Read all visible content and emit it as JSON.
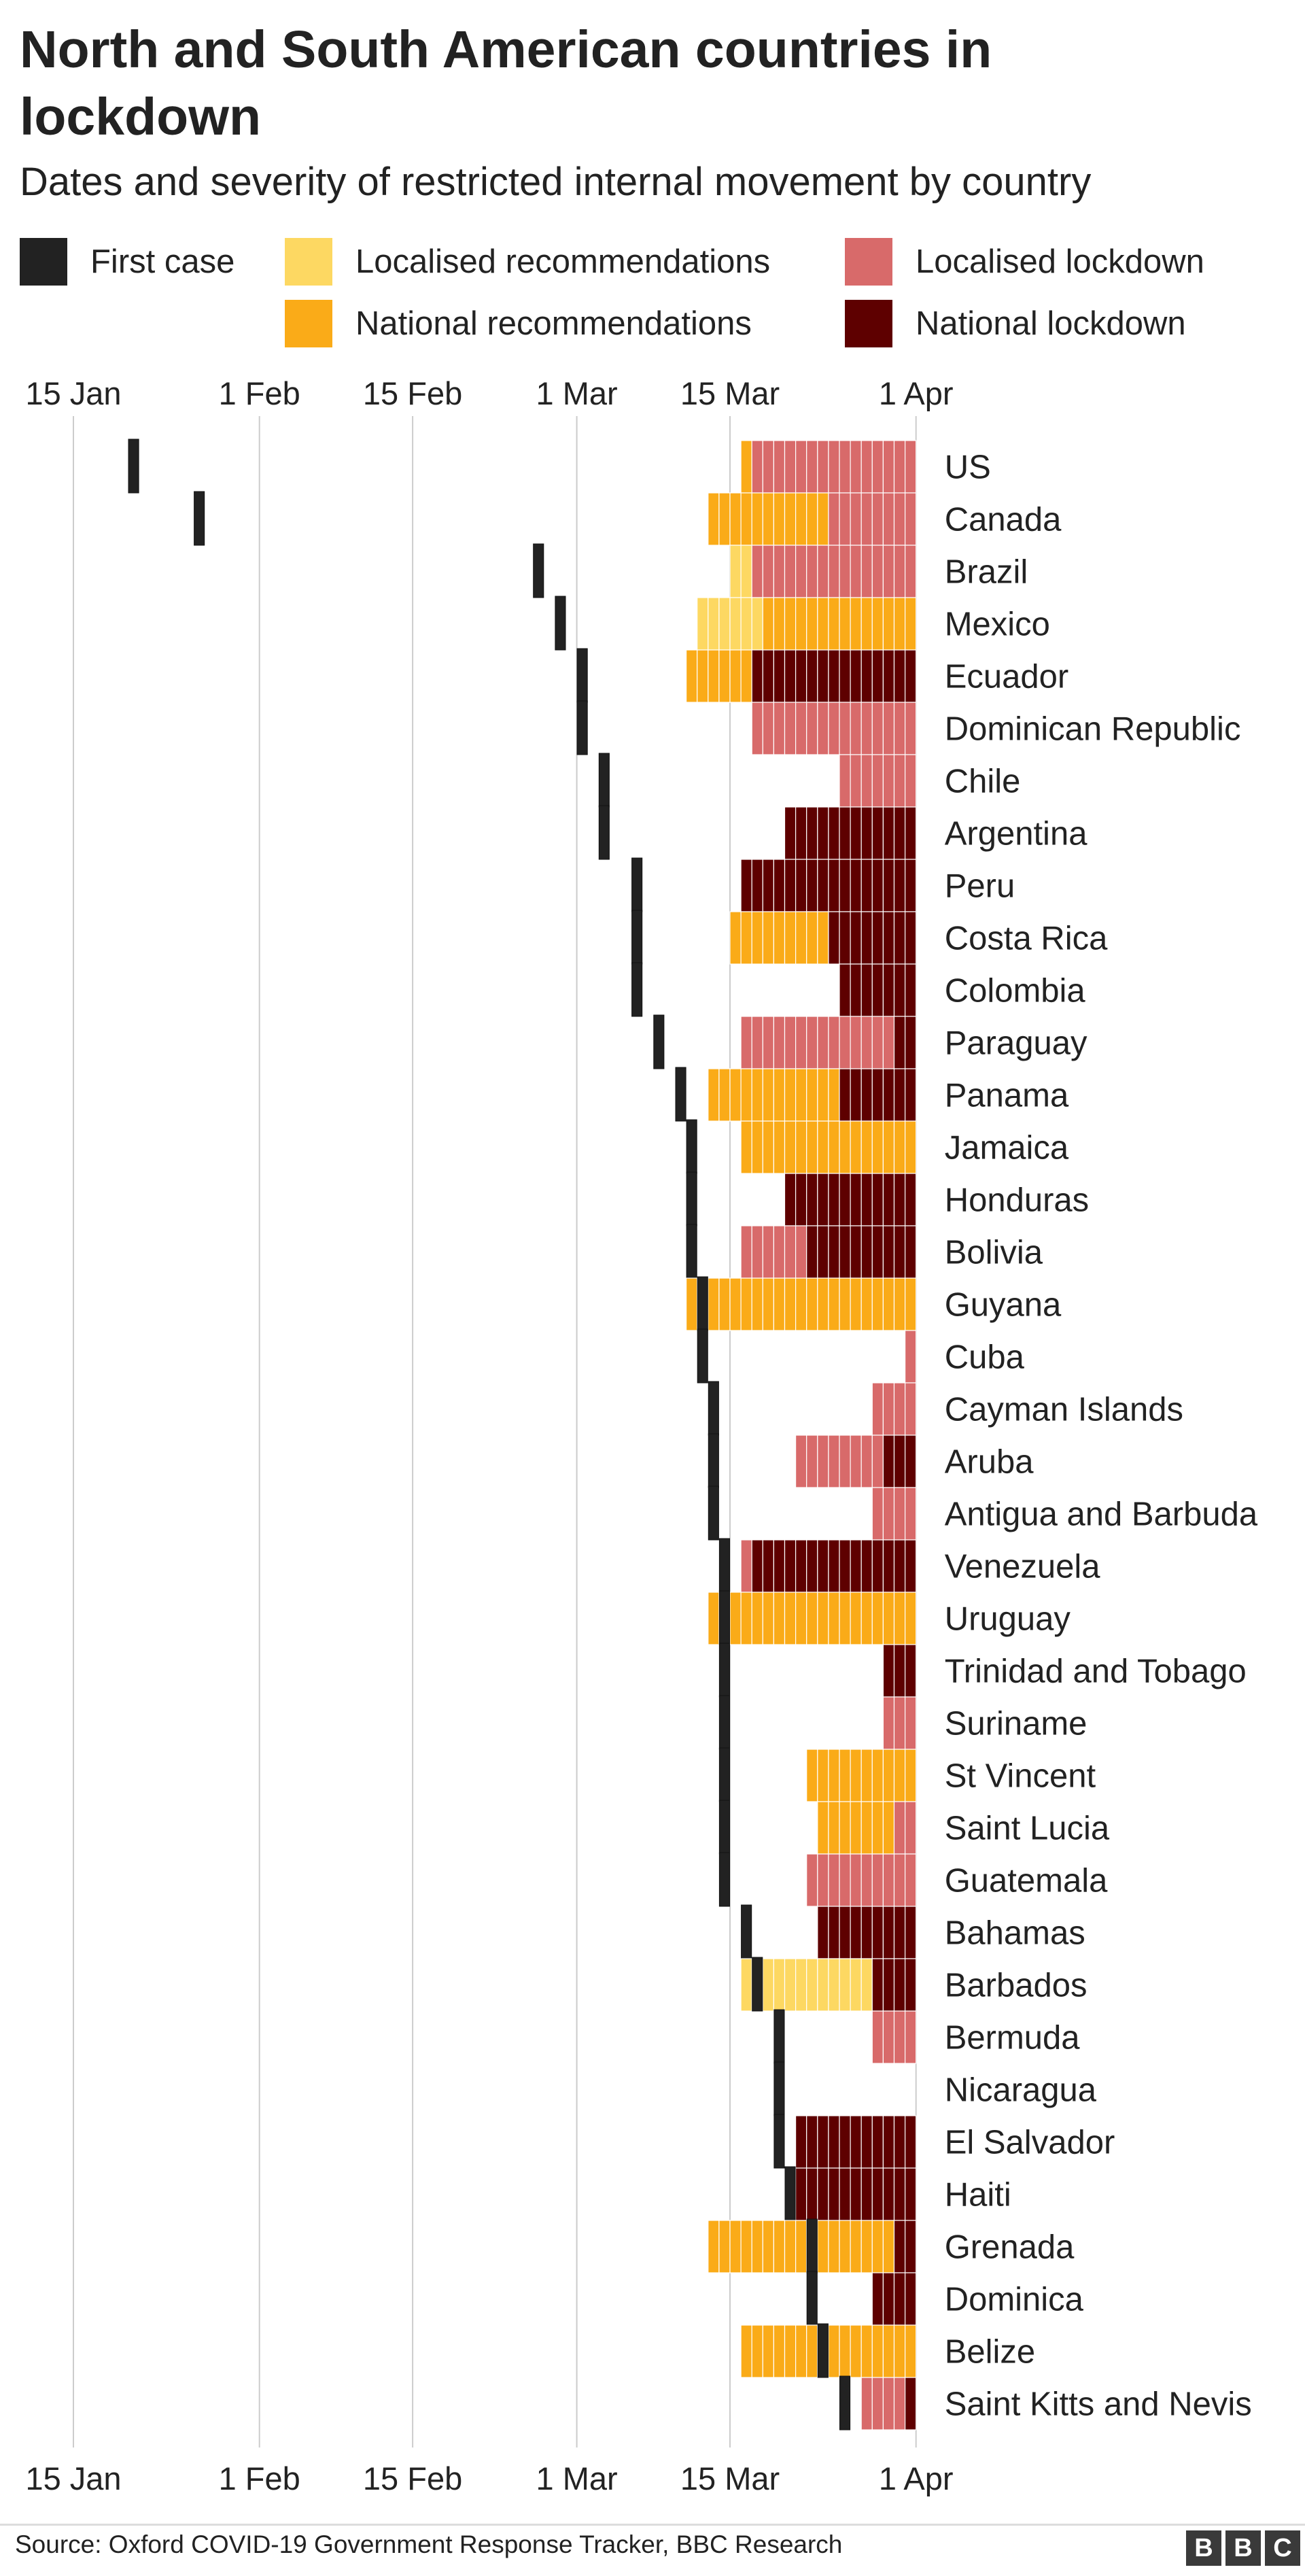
{
  "chart_data": {
    "type": "gantt",
    "title": "North and South American countries in lockdown",
    "subtitle": "Dates and severity of restricted internal movement by country",
    "x_tick_labels": [
      "15 Jan",
      "1 Feb",
      "15 Feb",
      "1 Mar",
      "15 Mar",
      "1 Apr"
    ],
    "x_ticks": [
      "2020-01-15",
      "2020-02-01",
      "2020-02-15",
      "2020-03-01",
      "2020-03-15",
      "2020-04-01"
    ],
    "x_range": [
      "2020-01-15",
      "2020-04-01"
    ],
    "legend": [
      {
        "key": "first_case",
        "label": "First case",
        "color": "#222222"
      },
      {
        "key": "local_rec",
        "label": "Localised recommendations",
        "color": "#fdd862"
      },
      {
        "key": "local_lock",
        "label": "Localised lockdown",
        "color": "#d86a6a"
      },
      {
        "key": "nat_rec",
        "label": "National recommendations",
        "color": "#faab18"
      },
      {
        "key": "nat_lock",
        "label": "National lockdown",
        "color": "#5e0000"
      }
    ],
    "countries": [
      {
        "name": "US",
        "first_case": "2020-01-20",
        "levels": [
          [
            "2020-03-16",
            "nat_rec"
          ],
          [
            "2020-03-17",
            "local_lock"
          ]
        ]
      },
      {
        "name": "Canada",
        "first_case": "2020-01-26",
        "levels": [
          [
            "2020-03-13",
            "nat_rec"
          ],
          [
            "2020-03-24",
            "local_lock"
          ]
        ]
      },
      {
        "name": "Brazil",
        "first_case": "2020-02-26",
        "levels": [
          [
            "2020-03-15",
            "local_rec"
          ],
          [
            "2020-03-17",
            "local_lock"
          ]
        ]
      },
      {
        "name": "Mexico",
        "first_case": "2020-02-28",
        "levels": [
          [
            "2020-03-12",
            "local_rec"
          ],
          [
            "2020-03-18",
            "nat_rec"
          ]
        ]
      },
      {
        "name": "Ecuador",
        "first_case": "2020-03-01",
        "levels": [
          [
            "2020-03-11",
            "nat_rec"
          ],
          [
            "2020-03-17",
            "nat_lock"
          ]
        ]
      },
      {
        "name": "Dominican Republic",
        "first_case": "2020-03-01",
        "levels": [
          [
            "2020-03-17",
            "local_lock"
          ]
        ]
      },
      {
        "name": "Chile",
        "first_case": "2020-03-03",
        "levels": [
          [
            "2020-03-25",
            "local_lock"
          ]
        ]
      },
      {
        "name": "Argentina",
        "first_case": "2020-03-03",
        "levels": [
          [
            "2020-03-20",
            "nat_lock"
          ]
        ]
      },
      {
        "name": "Peru",
        "first_case": "2020-03-06",
        "levels": [
          [
            "2020-03-16",
            "nat_lock"
          ]
        ]
      },
      {
        "name": "Costa Rica",
        "first_case": "2020-03-06",
        "levels": [
          [
            "2020-03-15",
            "nat_rec"
          ],
          [
            "2020-03-24",
            "nat_lock"
          ]
        ]
      },
      {
        "name": "Colombia",
        "first_case": "2020-03-06",
        "levels": [
          [
            "2020-03-25",
            "nat_lock"
          ]
        ]
      },
      {
        "name": "Paraguay",
        "first_case": "2020-03-08",
        "levels": [
          [
            "2020-03-16",
            "local_lock"
          ],
          [
            "2020-03-30",
            "nat_lock"
          ]
        ]
      },
      {
        "name": "Panama",
        "first_case": "2020-03-10",
        "levels": [
          [
            "2020-03-13",
            "nat_rec"
          ],
          [
            "2020-03-25",
            "nat_lock"
          ]
        ]
      },
      {
        "name": "Jamaica",
        "first_case": "2020-03-11",
        "levels": [
          [
            "2020-03-16",
            "nat_rec"
          ]
        ]
      },
      {
        "name": "Honduras",
        "first_case": "2020-03-11",
        "levels": [
          [
            "2020-03-20",
            "nat_lock"
          ]
        ]
      },
      {
        "name": "Bolivia",
        "first_case": "2020-03-11",
        "levels": [
          [
            "2020-03-16",
            "local_lock"
          ],
          [
            "2020-03-22",
            "nat_lock"
          ]
        ]
      },
      {
        "name": "Guyana",
        "first_case": "2020-03-12",
        "levels": [
          [
            "2020-03-11",
            "nat_rec"
          ]
        ]
      },
      {
        "name": "Cuba",
        "first_case": "2020-03-12",
        "levels": [
          [
            "2020-03-31",
            "local_lock"
          ]
        ]
      },
      {
        "name": "Cayman Islands",
        "first_case": "2020-03-13",
        "levels": [
          [
            "2020-03-28",
            "local_lock"
          ]
        ]
      },
      {
        "name": "Aruba",
        "first_case": "2020-03-13",
        "levels": [
          [
            "2020-03-21",
            "local_lock"
          ],
          [
            "2020-03-29",
            "nat_lock"
          ]
        ]
      },
      {
        "name": "Antigua and Barbuda",
        "first_case": "2020-03-13",
        "levels": [
          [
            "2020-03-28",
            "local_lock"
          ]
        ]
      },
      {
        "name": "Venezuela",
        "first_case": "2020-03-14",
        "levels": [
          [
            "2020-03-16",
            "local_lock"
          ],
          [
            "2020-03-17",
            "nat_lock"
          ]
        ]
      },
      {
        "name": "Uruguay",
        "first_case": "2020-03-14",
        "levels": [
          [
            "2020-03-13",
            "nat_rec"
          ]
        ]
      },
      {
        "name": "Trinidad and Tobago",
        "first_case": "2020-03-14",
        "levels": [
          [
            "2020-03-29",
            "nat_lock"
          ]
        ]
      },
      {
        "name": "Suriname",
        "first_case": "2020-03-14",
        "levels": [
          [
            "2020-03-29",
            "local_lock"
          ]
        ]
      },
      {
        "name": "St Vincent",
        "first_case": "2020-03-14",
        "levels": [
          [
            "2020-03-22",
            "nat_rec"
          ]
        ]
      },
      {
        "name": "Saint Lucia",
        "first_case": "2020-03-14",
        "levels": [
          [
            "2020-03-23",
            "nat_rec"
          ],
          [
            "2020-03-30",
            "local_lock"
          ]
        ]
      },
      {
        "name": "Guatemala",
        "first_case": "2020-03-14",
        "levels": [
          [
            "2020-03-22",
            "local_lock"
          ]
        ]
      },
      {
        "name": "Bahamas",
        "first_case": "2020-03-16",
        "levels": [
          [
            "2020-03-23",
            "nat_lock"
          ]
        ]
      },
      {
        "name": "Barbados",
        "first_case": "2020-03-17",
        "levels": [
          [
            "2020-03-16",
            "local_rec"
          ],
          [
            "2020-03-28",
            "nat_lock"
          ]
        ]
      },
      {
        "name": "Bermuda",
        "first_case": "2020-03-19",
        "levels": [
          [
            "2020-03-28",
            "local_lock"
          ]
        ]
      },
      {
        "name": "Nicaragua",
        "first_case": "2020-03-19",
        "levels": []
      },
      {
        "name": "El Salvador",
        "first_case": "2020-03-19",
        "levels": [
          [
            "2020-03-21",
            "nat_lock"
          ]
        ]
      },
      {
        "name": "Haiti",
        "first_case": "2020-03-20",
        "levels": [
          [
            "2020-03-21",
            "nat_lock"
          ]
        ]
      },
      {
        "name": "Grenada",
        "first_case": "2020-03-22",
        "levels": [
          [
            "2020-03-13",
            "nat_rec"
          ],
          [
            "2020-03-30",
            "nat_lock"
          ]
        ]
      },
      {
        "name": "Dominica",
        "first_case": "2020-03-22",
        "levels": [
          [
            "2020-03-28",
            "nat_lock"
          ]
        ]
      },
      {
        "name": "Belize",
        "first_case": "2020-03-23",
        "levels": [
          [
            "2020-03-16",
            "nat_rec"
          ]
        ]
      },
      {
        "name": "Saint Kitts and Nevis",
        "first_case": "2020-03-25",
        "levels": [
          [
            "2020-03-27",
            "local_lock"
          ],
          [
            "2020-03-31",
            "nat_lock"
          ]
        ]
      }
    ]
  },
  "source": "Source: Oxford COVID-19 Government Response Tracker, BBC Research",
  "logo_letters": [
    "B",
    "B",
    "C"
  ]
}
